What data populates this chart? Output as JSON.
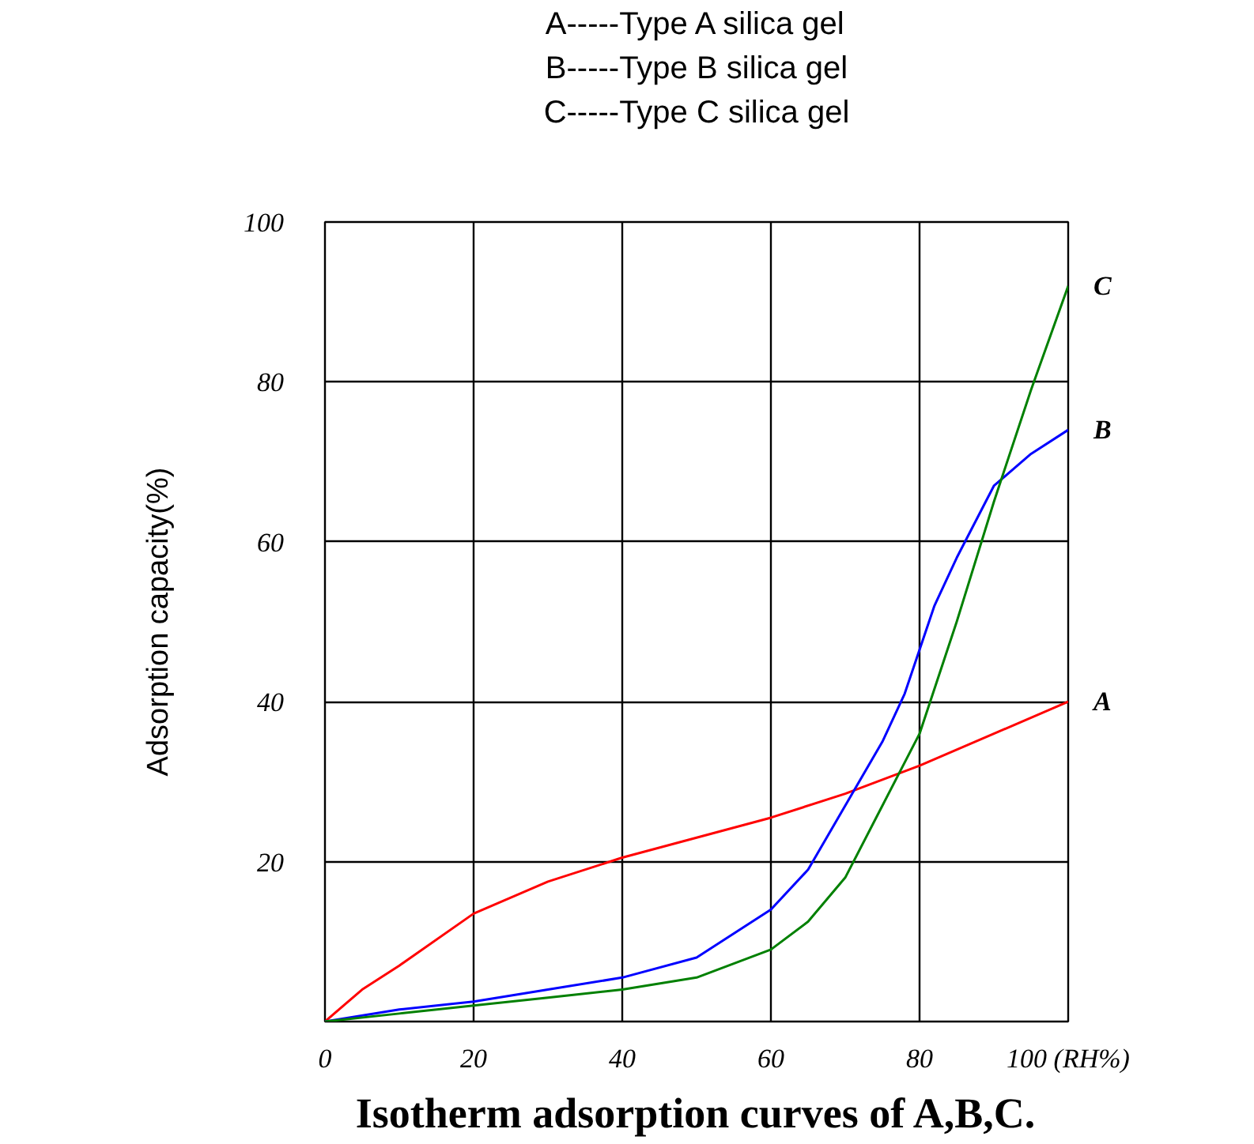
{
  "chart_data": {
    "type": "line",
    "title": "Isotherm adsorption curves of A,B,C.",
    "ylabel": "Adsorption capacity(%)",
    "annotations": [
      "A-----Type A silica gel",
      "B-----Type B silica gel",
      "C-----Type C silica gel"
    ],
    "xlim": [
      0,
      100
    ],
    "ylim": [
      0,
      100
    ],
    "xticks": [
      0,
      20,
      40,
      60,
      80,
      {
        "value": 100,
        "label": "100 (RH%)"
      }
    ],
    "yticks": [
      20,
      40,
      60,
      80,
      100
    ],
    "grid": true,
    "marker": "none",
    "line_style": "solid",
    "series": [
      {
        "name": "A",
        "color": "#ff0000",
        "x": [
          0,
          5,
          10,
          20,
          30,
          40,
          50,
          60,
          70,
          80,
          90,
          100
        ],
        "values": [
          0,
          4,
          7,
          13.5,
          17.5,
          20.5,
          23,
          25.5,
          28.5,
          32,
          36,
          40
        ]
      },
      {
        "name": "B",
        "color": "#0000ff",
        "x": [
          0,
          10,
          20,
          30,
          40,
          50,
          60,
          65,
          70,
          75,
          78,
          82,
          85,
          90,
          95,
          100
        ],
        "values": [
          0,
          1.5,
          2.5,
          4,
          5.5,
          8,
          14,
          19,
          27,
          35,
          41,
          52,
          58,
          67,
          71,
          74
        ]
      },
      {
        "name": "C",
        "color": "#008000",
        "x": [
          0,
          10,
          20,
          30,
          40,
          50,
          60,
          65,
          70,
          75,
          80,
          85,
          90,
          95,
          100
        ],
        "values": [
          0,
          1,
          2,
          3,
          4,
          5.5,
          9,
          12.5,
          18,
          27,
          36,
          50,
          65,
          79,
          92
        ]
      }
    ]
  }
}
